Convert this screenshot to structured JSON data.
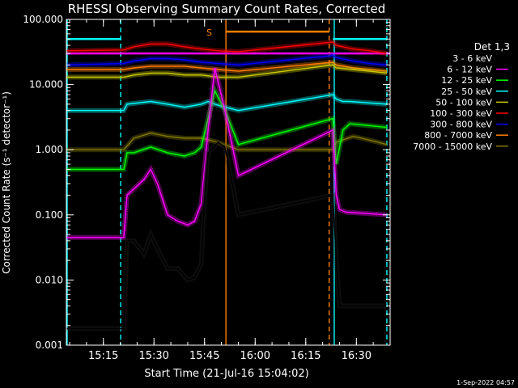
{
  "chart_data": {
    "type": "line",
    "title": "RHESSI Observing Summary Count Rates, Corrected",
    "xlabel": "Start Time (21-Jul-16 15:04:02)",
    "ylabel": "Corrected Count Rate (s⁻¹ detector⁻¹)",
    "yscale": "log",
    "ylim": [
      0.001,
      100
    ],
    "xlim_minutes_after_start": [
      0,
      95.97
    ],
    "x_ticks": [
      "15:15",
      "15:30",
      "15:45",
      "16:00",
      "16:15",
      "16:30"
    ],
    "y_ticks": [
      "100.000",
      "10.000",
      "1.000",
      "0.100",
      "0.010",
      "0.001"
    ],
    "legend_title": "Det 1,3",
    "legend_position": "right",
    "footer": "1-Sep-2022 04:57",
    "saa_label": "S",
    "series": [
      {
        "name": "3 - 6 keV",
        "color": "#000000",
        "x": [
          0,
          17,
          18,
          20,
          23,
          25,
          27,
          30,
          33,
          36,
          38,
          40,
          41,
          42,
          45,
          47,
          51,
          79,
          80,
          81,
          82,
          83,
          95
        ],
        "y": [
          0.0018,
          0.0018,
          0.04,
          0.04,
          0.025,
          0.05,
          0.03,
          0.015,
          0.015,
          0.01,
          0.011,
          0.018,
          0.2,
          0.9,
          1.3,
          1.1,
          0.1,
          0.2,
          0.02,
          0.004,
          0.004,
          0.004,
          0.004
        ]
      },
      {
        "name": "6 - 12 keV",
        "color": "#ff00ff",
        "x": [
          0,
          17,
          18,
          20,
          23,
          25,
          27,
          30,
          33,
          36,
          38,
          40,
          42,
          44,
          47,
          51,
          79,
          80,
          81,
          83,
          95
        ],
        "y": [
          0.045,
          0.045,
          0.2,
          0.25,
          0.35,
          0.5,
          0.3,
          0.1,
          0.08,
          0.07,
          0.08,
          0.15,
          2,
          18,
          4,
          0.4,
          2,
          0.2,
          0.12,
          0.11,
          0.1
        ]
      },
      {
        "name": "12 - 25 keV",
        "color": "#00ff00",
        "x": [
          0,
          17,
          18,
          20,
          25,
          30,
          35,
          38,
          40,
          42,
          44,
          47,
          51,
          79,
          80,
          82,
          84,
          95
        ],
        "y": [
          0.5,
          0.5,
          0.9,
          0.9,
          1.1,
          0.9,
          0.8,
          0.9,
          1.1,
          3,
          8,
          4,
          1.2,
          3,
          0.6,
          2,
          2.5,
          2.2
        ]
      },
      {
        "name": "25 - 50 keV",
        "color": "#00ffff",
        "x": [
          0,
          17,
          18,
          25,
          30,
          35,
          40,
          42,
          44,
          47,
          51,
          79,
          80,
          82,
          84,
          95
        ],
        "y": [
          4,
          4,
          5,
          5.5,
          5,
          4.5,
          5,
          5.5,
          5,
          4.5,
          4,
          7,
          6,
          5.5,
          5.5,
          5
        ]
      },
      {
        "name": "50 - 100 keV",
        "color": "#cccc00",
        "x": [
          0,
          17,
          20,
          25,
          30,
          35,
          40,
          45,
          51,
          79,
          80,
          85,
          90,
          95
        ],
        "y": [
          13,
          13,
          14,
          15,
          15,
          14,
          14,
          13,
          13,
          20,
          18,
          17,
          16,
          15
        ]
      },
      {
        "name": "100 - 300 keV",
        "color": "#ff0000",
        "x": [
          0,
          17,
          20,
          25,
          30,
          35,
          40,
          45,
          51,
          79,
          80,
          85,
          90,
          95
        ],
        "y": [
          33,
          34,
          38,
          42,
          42,
          38,
          35,
          33,
          32,
          45,
          40,
          35,
          33,
          30
        ]
      },
      {
        "name": "300 - 800 keV",
        "color": "#0000ff",
        "x": [
          0,
          17,
          20,
          25,
          30,
          35,
          40,
          45,
          51,
          79,
          80,
          85,
          90,
          95
        ],
        "y": [
          20,
          21,
          23,
          25,
          25,
          24,
          22,
          21,
          20,
          28,
          26,
          23,
          21,
          20
        ]
      },
      {
        "name": "800 - 7000 keV",
        "color": "#ff7f00",
        "x": [
          0,
          17,
          20,
          25,
          30,
          35,
          40,
          45,
          51,
          79,
          80,
          85,
          90,
          95
        ],
        "y": [
          17,
          17,
          18,
          19,
          19,
          19,
          18,
          17,
          16,
          22,
          20,
          18,
          17,
          16
        ]
      },
      {
        "name": "7000 - 15000 keV",
        "color": "#807800",
        "x": [
          0,
          17,
          20,
          25,
          30,
          35,
          40,
          45,
          51,
          79,
          80,
          85,
          90,
          95
        ],
        "y": [
          1,
          1,
          1.5,
          1.8,
          1.6,
          1.5,
          1.5,
          1.3,
          1,
          1,
          1.3,
          1.6,
          1.4,
          1.2
        ]
      }
    ],
    "flat_lines": [
      {
        "color": "#00ffff",
        "x": [
          0,
          16,
          79,
          95
        ],
        "y": [
          50,
          50,
          50,
          50
        ]
      },
      {
        "color": "#ff00ff",
        "x": [
          0,
          95.97
        ],
        "y": [
          30,
          30
        ]
      },
      {
        "color": "#ff7f00",
        "x": [
          47.3,
          77.9
        ],
        "y": [
          65,
          65
        ]
      }
    ],
    "vertical_markers": [
      {
        "color": "#ff7f00",
        "style": "solid",
        "x": 47.3
      },
      {
        "color": "#ff7f00",
        "style": "dashed",
        "x": 77.9
      },
      {
        "color": "#00ffff",
        "style": "dashed",
        "x": 16.1
      },
      {
        "color": "#00ffff",
        "style": "solid",
        "x": 79.4
      },
      {
        "color": "#00ffff",
        "style": "dashed",
        "x": 95.0
      },
      {
        "color": "#00ffff",
        "style": "solid",
        "x": 0
      }
    ]
  }
}
